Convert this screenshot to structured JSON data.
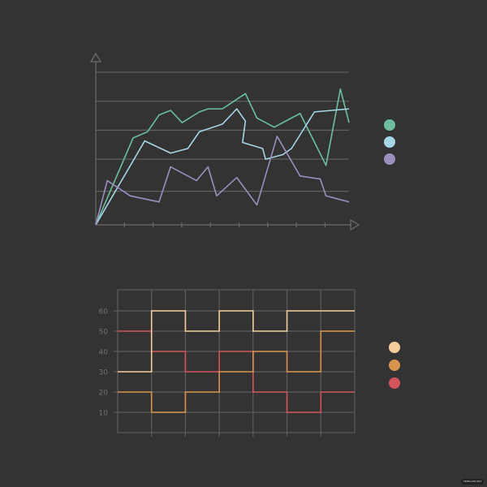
{
  "chart_data": [
    {
      "type": "line",
      "title": "",
      "xlabel": "",
      "ylabel": "",
      "xlim": [
        0,
        8.8
      ],
      "ylim": [
        0,
        100
      ],
      "x_ticks": [
        1,
        2,
        3,
        4,
        5,
        6,
        7,
        8
      ],
      "gridlines_y": [
        22,
        43,
        62,
        81,
        100
      ],
      "grid": true,
      "legend_placement": "right",
      "series": [
        {
          "color": "#6dbfa0",
          "points": [
            [
              0,
              0
            ],
            [
              1.3,
              57
            ],
            [
              1.8,
              61
            ],
            [
              2.2,
              72
            ],
            [
              2.6,
              75
            ],
            [
              3.0,
              67
            ],
            [
              3.6,
              74
            ],
            [
              3.9,
              76
            ],
            [
              4.4,
              76
            ],
            [
              5.2,
              86
            ],
            [
              5.6,
              70
            ],
            [
              6.2,
              64
            ],
            [
              7.1,
              73
            ],
            [
              8.0,
              39
            ],
            [
              8.5,
              89
            ],
            [
              8.8,
              67
            ]
          ]
        },
        {
          "color": "#a6d6e6",
          "points": [
            [
              0,
              0
            ],
            [
              1.7,
              55
            ],
            [
              2.6,
              47
            ],
            [
              3.2,
              50
            ],
            [
              3.6,
              61
            ],
            [
              4.4,
              66
            ],
            [
              4.9,
              76
            ],
            [
              5.2,
              68
            ],
            [
              5.1,
              54
            ],
            [
              5.8,
              50
            ],
            [
              5.9,
              43
            ],
            [
              6.5,
              46
            ],
            [
              6.8,
              50
            ],
            [
              7.6,
              74
            ],
            [
              8.8,
              76
            ]
          ]
        },
        {
          "color": "#9a8fc0",
          "points": [
            [
              0,
              0
            ],
            [
              0.4,
              29
            ],
            [
              1.2,
              19
            ],
            [
              2.2,
              15
            ],
            [
              2.6,
              38
            ],
            [
              3.5,
              29
            ],
            [
              3.9,
              38
            ],
            [
              4.2,
              19
            ],
            [
              4.9,
              31
            ],
            [
              5.6,
              13
            ],
            [
              6.3,
              58
            ],
            [
              7.1,
              32
            ],
            [
              7.8,
              30
            ],
            [
              8.0,
              19
            ],
            [
              8.8,
              15
            ]
          ]
        }
      ]
    },
    {
      "type": "line",
      "subtype": "step",
      "title": "",
      "xlabel": "",
      "ylabel": "",
      "ylim": [
        0,
        70
      ],
      "y_ticks": [
        "10",
        "20",
        "30",
        "40",
        "50",
        "60"
      ],
      "columns": 7,
      "grid": true,
      "legend_placement": "right",
      "series": [
        {
          "color": "#f5cc9c",
          "values": [
            30,
            60,
            50,
            60,
            50,
            60,
            60
          ]
        },
        {
          "color": "#d8944f",
          "values": [
            20,
            10,
            20,
            30,
            40,
            30,
            50
          ]
        },
        {
          "color": "#d0545a",
          "values": [
            50,
            40,
            30,
            40,
            20,
            10,
            20
          ]
        }
      ]
    }
  ],
  "watermark": "TEMPLATE.NET"
}
